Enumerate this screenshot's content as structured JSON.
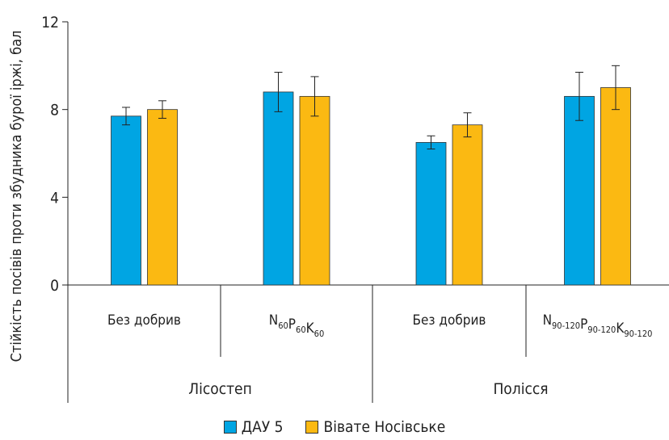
{
  "chart_data": {
    "type": "bar",
    "ylabel": "Стійкість посівів проти збудника бурої іржі, бал",
    "ylim": [
      0,
      12
    ],
    "yticks": [
      0,
      4,
      8,
      12
    ],
    "categories": [
      {
        "label": "Без добрив"
      },
      {
        "label": "N60P60K60",
        "parts": [
          [
            "N",
            "60"
          ],
          [
            "P",
            "60"
          ],
          [
            "K",
            "60"
          ]
        ]
      },
      {
        "label": "Без добрив"
      },
      {
        "label": "N90-120P90-120K90-120",
        "parts": [
          [
            "N",
            "90-120"
          ],
          [
            "P",
            "90-120"
          ],
          [
            "K",
            "90-120"
          ]
        ]
      }
    ],
    "groups": [
      {
        "label": "Лісостеп",
        "categories": [
          0,
          1
        ]
      },
      {
        "label": "Полісся",
        "categories": [
          2,
          3
        ]
      }
    ],
    "series": [
      {
        "name": "ДАУ 5",
        "color": "#00A5E3",
        "values": [
          7.7,
          8.8,
          6.5,
          8.6
        ],
        "errors": [
          0.4,
          0.9,
          0.3,
          1.1
        ]
      },
      {
        "name": "Вівате Носівське",
        "color": "#FBB912",
        "values": [
          8.0,
          8.6,
          7.3,
          9.0
        ],
        "errors": [
          0.4,
          0.9,
          0.55,
          1.0
        ]
      }
    ],
    "grid": false,
    "legend_position": "bottom"
  }
}
